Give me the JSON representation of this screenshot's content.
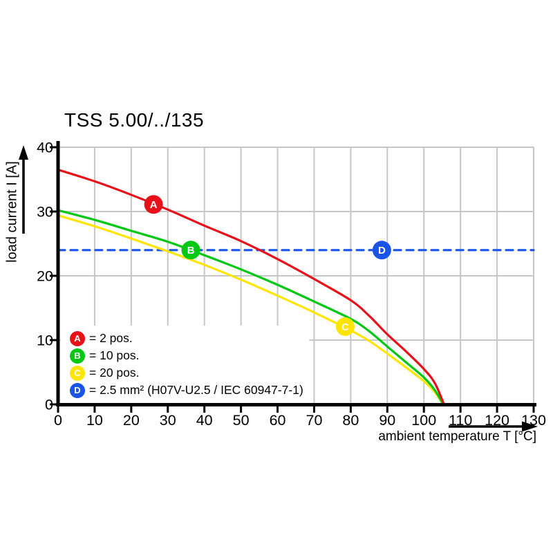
{
  "title": "TSS 5.00/../135",
  "y_axis": {
    "label": "load current I [A]"
  },
  "x_axis": {
    "label": "ambient temperature T [°C]"
  },
  "legend": {
    "items": [
      {
        "letter": "A",
        "color": "#e8111a",
        "label": "= 2 pos."
      },
      {
        "letter": "B",
        "color": "#00c814",
        "label": "= 10 pos."
      },
      {
        "letter": "C",
        "color": "#ffe500",
        "label": "= 20 pos."
      },
      {
        "letter": "D",
        "color": "#1a53e8",
        "label": "= 2.5 mm² (H07V-U2.5 / IEC 60947-7-1)"
      }
    ]
  },
  "chart_data": {
    "type": "line",
    "title": "TSS 5.00/../135",
    "xlabel": "ambient temperature T [°C]",
    "ylabel": "load current I [A]",
    "xlim": [
      0,
      130
    ],
    "ylim": [
      0,
      40
    ],
    "x_ticks": [
      0,
      10,
      20,
      30,
      40,
      50,
      60,
      70,
      80,
      90,
      100,
      110,
      120,
      130
    ],
    "y_ticks": [
      0,
      10,
      20,
      30,
      40
    ],
    "grid": true,
    "legend_position": "lower-left",
    "colors": {
      "grid": "#c6c6c6",
      "axis": "#000000",
      "background": "#ffffff"
    },
    "series": [
      {
        "name": "A",
        "label": "2 pos.",
        "color": "#e8111a",
        "style": "solid",
        "points": [
          [
            0,
            36.5
          ],
          [
            10,
            34.7
          ],
          [
            20,
            32.6
          ],
          [
            30,
            30.3
          ],
          [
            40,
            27.8
          ],
          [
            50,
            25.4
          ],
          [
            60,
            22.6
          ],
          [
            70,
            19.5
          ],
          [
            80,
            16.2
          ],
          [
            85,
            13.8
          ],
          [
            90,
            10.9
          ],
          [
            95,
            8.3
          ],
          [
            100,
            5.5
          ],
          [
            103,
            3.3
          ],
          [
            105.5,
            0
          ]
        ]
      },
      {
        "name": "B",
        "label": "10 pos.",
        "color": "#00c814",
        "style": "solid",
        "points": [
          [
            0,
            30.2
          ],
          [
            10,
            28.7
          ],
          [
            20,
            27.0
          ],
          [
            30,
            25.3
          ],
          [
            40,
            23.2
          ],
          [
            50,
            21.0
          ],
          [
            60,
            18.6
          ],
          [
            70,
            16.0
          ],
          [
            80,
            13.3
          ],
          [
            85,
            11.4
          ],
          [
            90,
            9.0
          ],
          [
            95,
            6.6
          ],
          [
            100,
            4.2
          ],
          [
            103,
            2.2
          ],
          [
            105.3,
            0
          ]
        ]
      },
      {
        "name": "C",
        "label": "20 pos.",
        "color": "#ffe500",
        "style": "solid",
        "points": [
          [
            0,
            29.4
          ],
          [
            10,
            27.7
          ],
          [
            20,
            25.8
          ],
          [
            30,
            23.8
          ],
          [
            40,
            21.7
          ],
          [
            50,
            19.4
          ],
          [
            60,
            16.9
          ],
          [
            70,
            14.3
          ],
          [
            80,
            11.5
          ],
          [
            85,
            9.9
          ],
          [
            90,
            7.9
          ],
          [
            95,
            5.8
          ],
          [
            100,
            3.6
          ],
          [
            103,
            1.9
          ],
          [
            105.2,
            0
          ]
        ]
      },
      {
        "name": "D",
        "label": "2.5 mm² (H07V-U2.5 / IEC 60947-7-1)",
        "color": "#1a53e8",
        "style": "dashed",
        "points": [
          [
            0,
            24
          ],
          [
            130,
            24
          ]
        ]
      }
    ],
    "markers": [
      {
        "letter": "A",
        "x": 26.1,
        "y": 31.1,
        "color": "#e8111a"
      },
      {
        "letter": "B",
        "x": 36.3,
        "y": 24.0,
        "color": "#00c814"
      },
      {
        "letter": "C",
        "x": 78.5,
        "y": 12.1,
        "color": "#ffe500"
      },
      {
        "letter": "D",
        "x": 88.5,
        "y": 24.0,
        "color": "#1a53e8"
      }
    ]
  }
}
